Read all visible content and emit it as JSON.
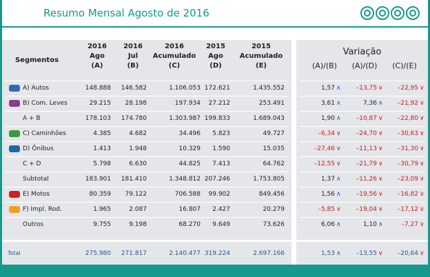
{
  "header": {
    "title": "Resumo Mensal Agosto de 2016"
  },
  "table": {
    "columns": [
      [
        "Segmentos"
      ],
      [
        "2016",
        "Ago",
        "(A)"
      ],
      [
        "2016",
        "Jul",
        "(B)"
      ],
      [
        "2016",
        "Acumulado",
        "(C)"
      ],
      [
        "2015",
        "Ago",
        "(D)"
      ],
      [
        "2015",
        "Acumulado",
        "(E)"
      ]
    ],
    "rows": [
      {
        "label": "A) Autos",
        "values": [
          "148.888",
          "146.582",
          "1.106.053",
          "172.621",
          "1.435.552"
        ],
        "variation": [
          "1,57",
          "–13,75",
          "–22,95"
        ]
      },
      {
        "label": "B) Com. Leves",
        "values": [
          "29.215",
          "28.198",
          "197.934",
          "27.212",
          "253.491"
        ],
        "variation": [
          "3,61",
          "7,36",
          "–21,92"
        ]
      },
      {
        "label": "A + B",
        "values": [
          "178.103",
          "174.780",
          "1.303.987",
          "199.833",
          "1.689.043"
        ],
        "variation": [
          "1,90",
          "–10,87",
          "–22,80"
        ]
      },
      {
        "label": "C) Caminhões",
        "values": [
          "4.385",
          "4.682",
          "34.496",
          "5.823",
          "49.727"
        ],
        "variation": [
          "–6,34",
          "–24,70",
          "–30,63"
        ]
      },
      {
        "label": "D) Ônibus",
        "values": [
          "1.413",
          "1.948",
          "10.329",
          "1.590",
          "15.035"
        ],
        "variation": [
          "–27,46",
          "–11,13",
          "–31,30"
        ]
      },
      {
        "label": "C + D",
        "values": [
          "5.798",
          "6.630",
          "44.825",
          "7.413",
          "64.762"
        ],
        "variation": [
          "–12,55",
          "–21,79",
          "–30,79"
        ]
      },
      {
        "label": "Subtotal",
        "values": [
          "183.901",
          "181.410",
          "1.348.812",
          "207.246",
          "1.753.805"
        ],
        "variation": [
          "1,37",
          "–11,26",
          "–23,09"
        ]
      },
      {
        "label": "E) Motos",
        "values": [
          "80.359",
          "79.122",
          "706.588",
          "99.902",
          "849.456"
        ],
        "variation": [
          "1,56",
          "–19,56",
          "–16,82"
        ]
      },
      {
        "label": "F) Impl. Rod.",
        "values": [
          "1.965",
          "2.087",
          "16.807",
          "2.427",
          "20.279"
        ],
        "variation": [
          "–5,85",
          "–19,04",
          "–17,12"
        ]
      },
      {
        "label": "Outros",
        "values": [
          "9.755",
          "9.198",
          "68.270",
          "9.649",
          "73.626"
        ],
        "variation": [
          "6,06",
          "1,10",
          "–7,27"
        ]
      }
    ],
    "total": {
      "label": "Total",
      "values": [
        "275.980",
        "271.817",
        "2.140.477",
        "319.224",
        "2.697.166"
      ],
      "variation": [
        "1,53",
        "–13,55",
        "–20,64"
      ]
    }
  },
  "variation": {
    "title": "Variação",
    "columns": [
      "(A)/(B)",
      "(A)/(D)",
      "(C)/(E)"
    ]
  }
}
